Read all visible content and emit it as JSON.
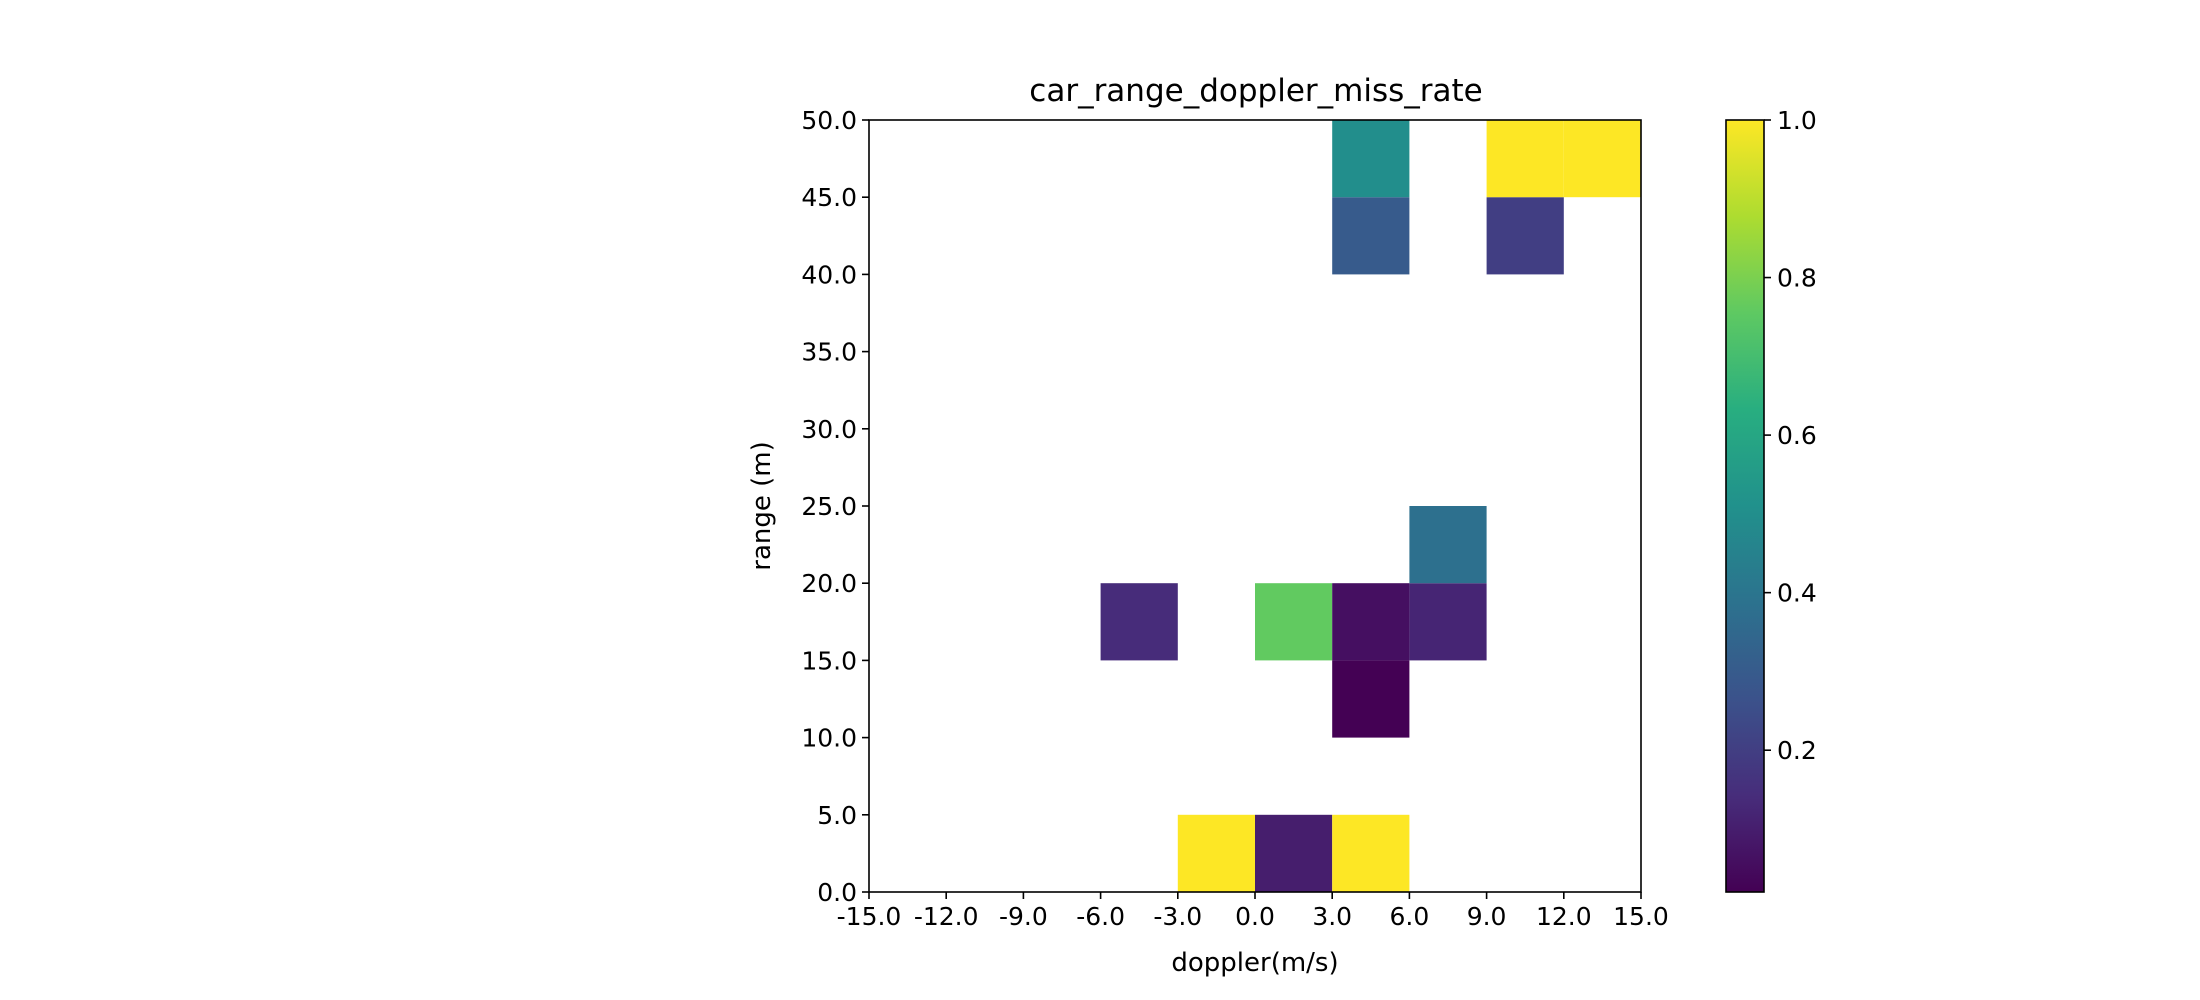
{
  "chart_data": {
    "type": "heatmap",
    "title": "car_range_doppler_miss_rate",
    "xlabel": "doppler(m/s)",
    "ylabel": "range (m)",
    "xlim": [
      -15.0,
      15.0
    ],
    "ylim": [
      0.0,
      50.0
    ],
    "x_ticks": [
      "-15.0",
      "-12.0",
      "-9.0",
      "-6.0",
      "-3.0",
      "0.0",
      "3.0",
      "6.0",
      "9.0",
      "12.0",
      "15.0"
    ],
    "y_ticks": [
      "0.0",
      "5.0",
      "10.0",
      "15.0",
      "20.0",
      "25.0",
      "30.0",
      "35.0",
      "40.0",
      "45.0",
      "50.0"
    ],
    "x_bin_width": 3.0,
    "y_bin_height": 5.0,
    "cells": [
      {
        "x": -3.0,
        "y": 0.0,
        "value": 1.0
      },
      {
        "x": 0.0,
        "y": 0.0,
        "value": 0.1
      },
      {
        "x": 3.0,
        "y": 0.0,
        "value": 1.0
      },
      {
        "x": 3.0,
        "y": 10.0,
        "value": 0.02
      },
      {
        "x": -6.0,
        "y": 15.0,
        "value": 0.14
      },
      {
        "x": 0.0,
        "y": 15.0,
        "value": 0.76
      },
      {
        "x": 3.0,
        "y": 15.0,
        "value": 0.06
      },
      {
        "x": 6.0,
        "y": 15.0,
        "value": 0.12
      },
      {
        "x": 6.0,
        "y": 20.0,
        "value": 0.38
      },
      {
        "x": 3.0,
        "y": 40.0,
        "value": 0.3
      },
      {
        "x": 9.0,
        "y": 40.0,
        "value": 0.2
      },
      {
        "x": 3.0,
        "y": 45.0,
        "value": 0.5
      },
      {
        "x": 9.0,
        "y": 45.0,
        "value": 1.0
      },
      {
        "x": 12.0,
        "y": 45.0,
        "value": 1.0
      }
    ],
    "colorbar": {
      "colormap": "viridis",
      "range": [
        0.02,
        1.0
      ],
      "ticks": [
        "0.2",
        "0.4",
        "0.6",
        "0.8",
        "1.0"
      ]
    },
    "grid": false,
    "legend": "none"
  }
}
